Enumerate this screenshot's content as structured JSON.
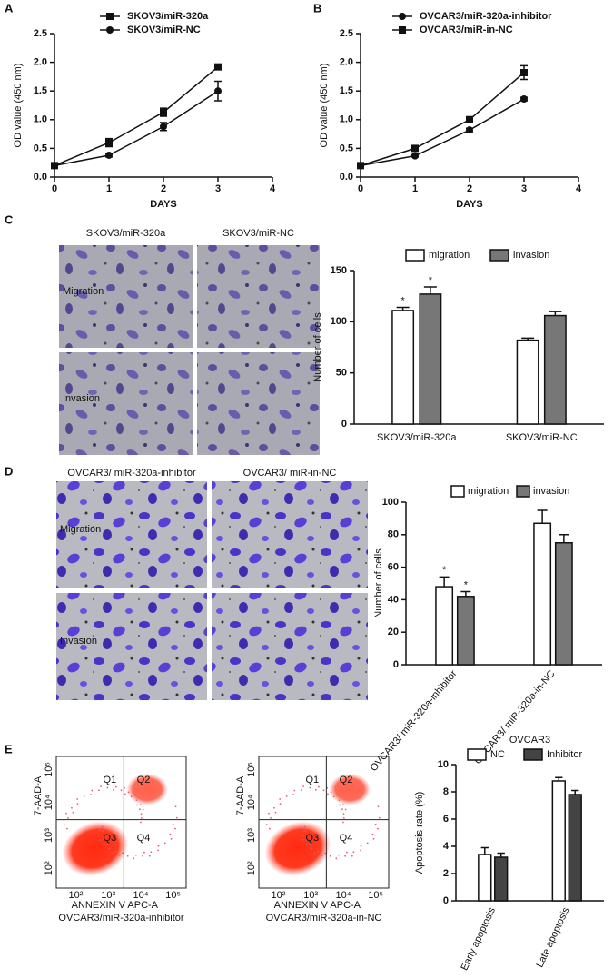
{
  "panel_letters": [
    "A",
    "B",
    "C",
    "D",
    "E"
  ],
  "panel_c_images": {
    "columns": [
      "SKOV3/miR-320a",
      "SKOV3/miR-NC"
    ],
    "rows": [
      "Migration",
      "Invasion"
    ]
  },
  "panel_d_images": {
    "columns": [
      "OVCAR3/ miR-320a-inhibitor",
      "OVCAR3/ miR-in-NC"
    ],
    "rows": [
      "Migration",
      "Invasion"
    ]
  },
  "panel_e_flow": {
    "y_label": "7-AAD-A",
    "x_label": "ANNEXIN V APC-A",
    "quadrants": [
      "Q1",
      "Q2",
      "Q3",
      "Q4"
    ],
    "ticks": [
      "10²",
      "10³",
      "10⁴",
      "10⁵"
    ],
    "captions": [
      "OVCAR3/miR-320a-inhibitor",
      "OVCAR3/miR-320a-in-NC"
    ]
  },
  "chart_data": [
    {
      "type": "line",
      "x_label": "DAYS",
      "y_label": "OD value (450 nm)",
      "x": [
        0,
        1,
        2,
        3
      ],
      "xlim": [
        0,
        4
      ],
      "xticks": [
        0,
        1,
        2,
        3,
        4
      ],
      "ylim": [
        0,
        2.5
      ],
      "yticks": [
        {
          "value": 0,
          "label": "0.0"
        },
        0.5,
        {
          "value": 1,
          "label": "1.0"
        },
        1.5,
        {
          "value": 2,
          "label": "2.0"
        },
        2.5
      ],
      "series": [
        {
          "name": "SKOV3/miR-320a",
          "color": "#111111",
          "marker": "square",
          "values": [
            0.2,
            0.6,
            1.13,
            1.92
          ],
          "errors": [
            0,
            0.07,
            0.07,
            0.03
          ]
        },
        {
          "name": "SKOV3/miR-NC",
          "color": "#111111",
          "marker": "circle",
          "values": [
            0.2,
            0.38,
            0.88,
            1.5
          ],
          "errors": [
            0,
            0.03,
            0.07,
            0.17
          ]
        }
      ]
    },
    {
      "type": "line",
      "x_label": "DAYS",
      "y_label": "OD value (450 nm)",
      "x": [
        0,
        1,
        2,
        3
      ],
      "xlim": [
        0,
        4
      ],
      "xticks": [
        0,
        1,
        2,
        3,
        4
      ],
      "ylim": [
        0,
        2.5
      ],
      "yticks": [
        {
          "value": 0,
          "label": "0.0"
        },
        0.5,
        {
          "value": 1,
          "label": "1.0"
        },
        1.5,
        {
          "value": 2,
          "label": "2.0"
        },
        2.5
      ],
      "series": [
        {
          "name": "OVCAR3/miR-320a-inhibitor",
          "color": "#111111",
          "marker": "circle",
          "values": [
            0.2,
            0.37,
            0.82,
            1.36
          ],
          "errors": [
            0,
            0.02,
            0.03,
            0.03
          ]
        },
        {
          "name": "OVCAR3/miR-in-NC",
          "color": "#111111",
          "marker": "square",
          "values": [
            0.2,
            0.5,
            1.0,
            1.82
          ],
          "errors": [
            0,
            0.03,
            0.05,
            0.12
          ]
        }
      ]
    },
    {
      "type": "bar",
      "y_label": "Number of cells",
      "categories": [
        "SKOV3/miR-320a",
        "SKOV3/miR-NC"
      ],
      "ylim": [
        0,
        150
      ],
      "yticks": [
        0,
        50,
        100,
        150
      ],
      "series": [
        {
          "name": "migration",
          "color": "#ffffff",
          "values": [
            111,
            82
          ],
          "errors": [
            3,
            2
          ],
          "significance": [
            "*",
            null
          ]
        },
        {
          "name": "invasion",
          "color": "#777777",
          "values": [
            127,
            106
          ],
          "errors": [
            7,
            4
          ],
          "significance": [
            "*",
            null
          ]
        }
      ]
    },
    {
      "type": "bar",
      "y_label": "Number of cells",
      "categories": [
        "OVCAR3/ miR-320a-inhibitor",
        "OVCAR3/ miR-320a-in-NC"
      ],
      "ylim": [
        0,
        100
      ],
      "yticks": [
        0,
        20,
        40,
        60,
        80,
        100
      ],
      "series": [
        {
          "name": "migration",
          "color": "#ffffff",
          "values": [
            48,
            87
          ],
          "errors": [
            6,
            8
          ],
          "significance": [
            "*",
            null
          ]
        },
        {
          "name": "invasion",
          "color": "#777777",
          "values": [
            42,
            75
          ],
          "errors": [
            3,
            5
          ],
          "significance": [
            "*",
            null
          ]
        }
      ]
    },
    {
      "type": "bar",
      "title": "OVCAR3",
      "y_label": "Apoptosis rate (%)",
      "categories": [
        "Early apoptosis",
        "Late apoptosis"
      ],
      "ylim": [
        0,
        10
      ],
      "yticks": [
        0,
        2,
        4,
        6,
        8,
        10
      ],
      "series": [
        {
          "name": "NC",
          "color": "#ffffff",
          "values": [
            3.4,
            8.8
          ],
          "errors": [
            0.5,
            0.25
          ]
        },
        {
          "name": "Inhibitor",
          "color": "#444444",
          "values": [
            3.2,
            7.8
          ],
          "errors": [
            0.3,
            0.3
          ]
        }
      ]
    }
  ]
}
